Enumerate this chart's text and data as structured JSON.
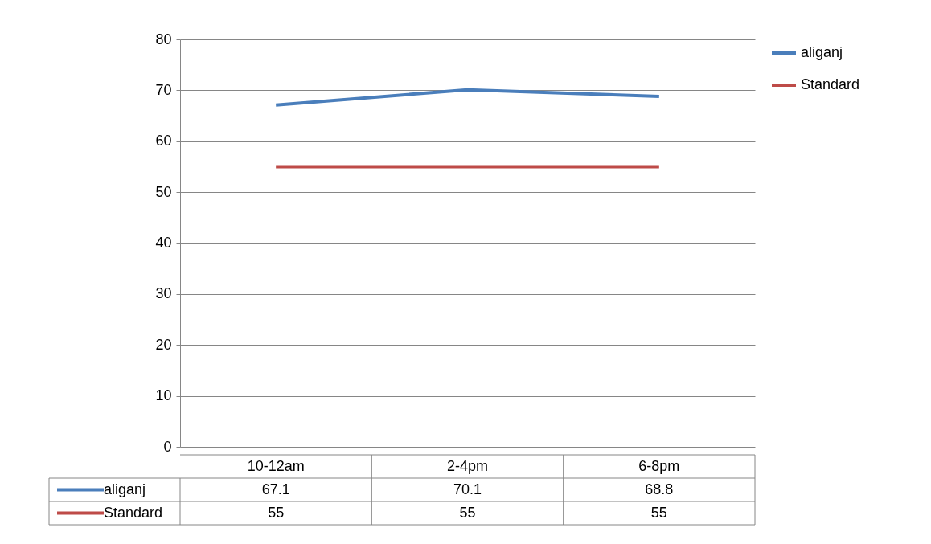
{
  "chart_data": {
    "type": "line",
    "categories": [
      "10-12am",
      "2-4pm",
      "6-8pm"
    ],
    "series": [
      {
        "name": "aliganj",
        "color": "#4a7ebb",
        "values": [
          67.1,
          70.1,
          68.8
        ]
      },
      {
        "name": "Standard",
        "color": "#be4b48",
        "values": [
          55,
          55,
          55
        ]
      }
    ],
    "ylim": [
      0,
      80
    ],
    "yticks": [
      0,
      10,
      20,
      30,
      40,
      50,
      60,
      70,
      80
    ],
    "grid": "y",
    "legend": "right",
    "data_labels": true,
    "line_style": "solid",
    "marker": "none"
  }
}
